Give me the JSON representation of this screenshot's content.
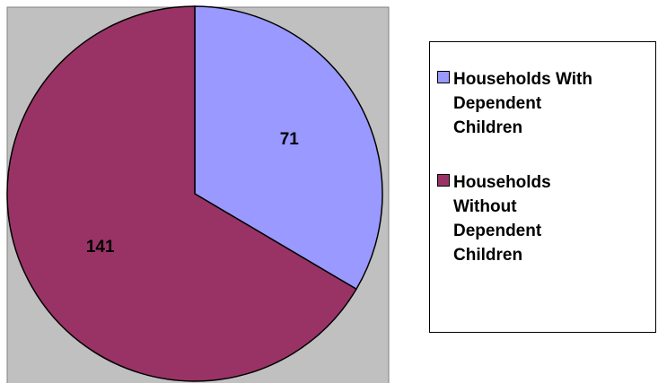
{
  "chart_data": {
    "type": "pie",
    "categories": [
      "Households With Dependent Children",
      "Households Without Dependent Children"
    ],
    "values": [
      71,
      141
    ],
    "colors": [
      "#9999ff",
      "#993366"
    ]
  }
}
